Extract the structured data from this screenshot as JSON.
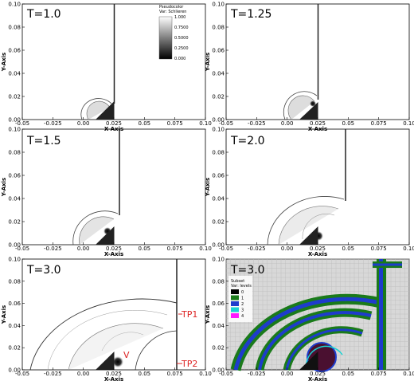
{
  "axis": {
    "xlabel": "X-Axis",
    "ylabel": "Y-Axis",
    "xticks": [
      "-0.05",
      "-0.025",
      "0.00",
      "0.025",
      "0.05",
      "0.075",
      "0.10"
    ],
    "yticks": [
      "0.00",
      "0.02",
      "0.04",
      "0.06",
      "0.08",
      "0.10"
    ]
  },
  "panels": [
    {
      "time": "T=1.0"
    },
    {
      "time": "T=1.25"
    },
    {
      "time": "T=1.5"
    },
    {
      "time": "T=2.0"
    },
    {
      "time": "T=3.0",
      "labels": {
        "tp1": "TP1",
        "tp2": "TP2",
        "v": "V"
      }
    },
    {
      "time": "T=3.0"
    }
  ],
  "pseudocolor_legend": {
    "title": "Pseudocolor",
    "var": "Var: Schlieren",
    "ticks": [
      "1.000",
      "0.7500",
      "0.5000",
      "0.2500",
      "0.000"
    ]
  },
  "subset_legend": {
    "title": "Subset",
    "var": "Var: levels",
    "items": [
      {
        "label": "0",
        "color": "#000000"
      },
      {
        "label": "1",
        "color": "#1a7a1a"
      },
      {
        "label": "2",
        "color": "#1e3ccc"
      },
      {
        "label": "3",
        "color": "#19d3d3"
      },
      {
        "label": "4",
        "color": "#ff19ff"
      }
    ]
  }
}
